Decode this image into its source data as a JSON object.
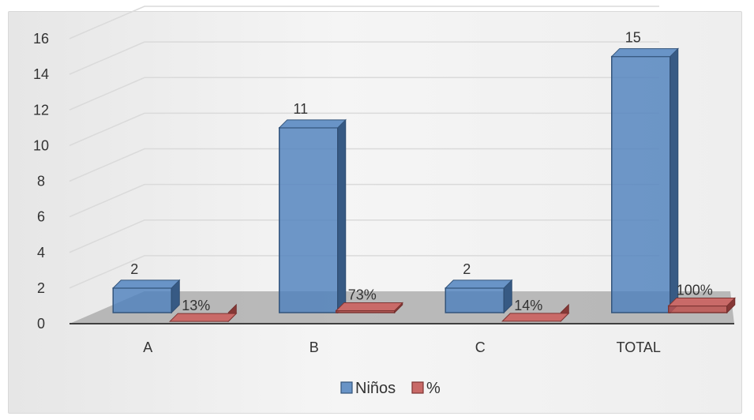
{
  "chart_data": {
    "type": "bar",
    "categories": [
      "A",
      "B",
      "C",
      "TOTAL"
    ],
    "series": [
      {
        "name": "Niños",
        "values": [
          2,
          11,
          2,
          15
        ],
        "labels": [
          "2",
          "11",
          "2",
          "15"
        ],
        "color": "#4f81bd"
      },
      {
        "name": "%",
        "values": [
          0.13,
          0.73,
          0.14,
          1.0
        ],
        "labels": [
          "13%",
          "73%",
          "14%",
          "100%"
        ],
        "color": "#c0504d"
      }
    ],
    "yticks": [
      "0",
      "2",
      "4",
      "6",
      "8",
      "10",
      "12",
      "14",
      "16"
    ],
    "ylim": [
      0,
      16
    ],
    "grid": true,
    "legend": "bottom",
    "style": "3d-column"
  }
}
